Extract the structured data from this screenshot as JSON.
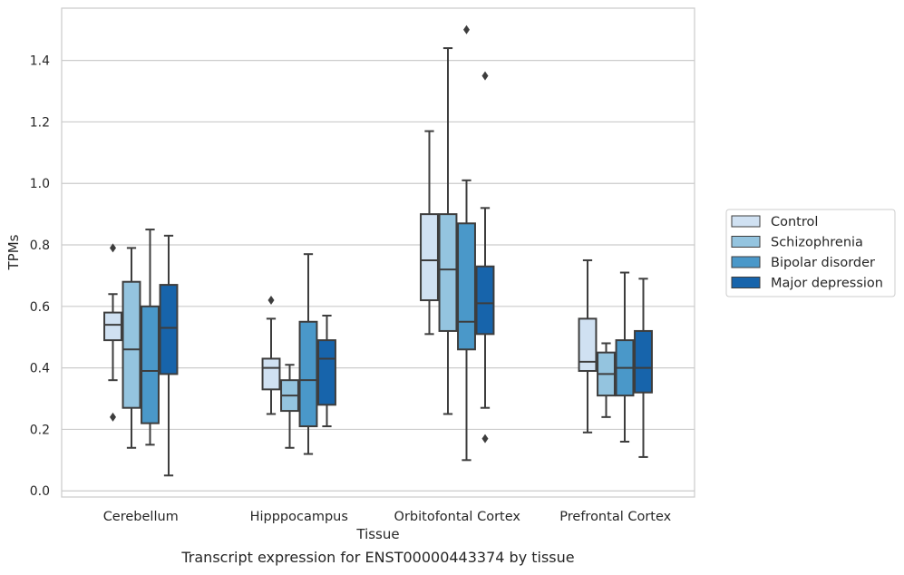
{
  "chart_data": {
    "type": "box",
    "title": "",
    "xlabel": "Tissue",
    "ylabel": "TPMs",
    "caption": "Transcript expression for ENST00000443374 by tissue",
    "ylim": [
      -0.02,
      1.57
    ],
    "yticks": [
      0.0,
      0.2,
      0.4,
      0.6,
      0.8,
      1.0,
      1.2,
      1.4
    ],
    "ytick_labels": [
      "0.0",
      "0.2",
      "0.4",
      "0.6",
      "0.8",
      "1.0",
      "1.2",
      "1.4"
    ],
    "grid": true,
    "legend_position": "right",
    "categories": [
      "Cerebellum",
      "Hipppocampus",
      "Orbitofontal Cortex",
      "Prefrontal Cortex"
    ],
    "series": [
      {
        "name": "Control",
        "color": "#d0e1f2",
        "boxes": [
          {
            "whislo": 0.36,
            "q1": 0.49,
            "med": 0.54,
            "q3": 0.58,
            "whishi": 0.64,
            "fliers": [
              0.79,
              0.24
            ]
          },
          {
            "whislo": 0.25,
            "q1": 0.33,
            "med": 0.4,
            "q3": 0.43,
            "whishi": 0.56,
            "fliers": [
              0.62
            ]
          },
          {
            "whislo": 0.51,
            "q1": 0.62,
            "med": 0.75,
            "q3": 0.9,
            "whishi": 1.17,
            "fliers": []
          },
          {
            "whislo": 0.19,
            "q1": 0.39,
            "med": 0.42,
            "q3": 0.56,
            "whishi": 0.75,
            "fliers": []
          }
        ]
      },
      {
        "name": "Schizophrenia",
        "color": "#94c4df",
        "boxes": [
          {
            "whislo": 0.14,
            "q1": 0.27,
            "med": 0.46,
            "q3": 0.68,
            "whishi": 0.79,
            "fliers": []
          },
          {
            "whislo": 0.14,
            "q1": 0.26,
            "med": 0.31,
            "q3": 0.36,
            "whishi": 0.41,
            "fliers": []
          },
          {
            "whislo": 0.25,
            "q1": 0.52,
            "med": 0.72,
            "q3": 0.9,
            "whishi": 1.44,
            "fliers": []
          },
          {
            "whislo": 0.24,
            "q1": 0.31,
            "med": 0.38,
            "q3": 0.45,
            "whishi": 0.48,
            "fliers": []
          }
        ]
      },
      {
        "name": "Bipolar disorder",
        "color": "#4a98c9",
        "boxes": [
          {
            "whislo": 0.15,
            "q1": 0.22,
            "med": 0.39,
            "q3": 0.6,
            "whishi": 0.85,
            "fliers": []
          },
          {
            "whislo": 0.12,
            "q1": 0.21,
            "med": 0.36,
            "q3": 0.55,
            "whishi": 0.77,
            "fliers": []
          },
          {
            "whislo": 0.1,
            "q1": 0.46,
            "med": 0.55,
            "q3": 0.87,
            "whishi": 1.01,
            "fliers": [
              1.5
            ]
          },
          {
            "whislo": 0.16,
            "q1": 0.31,
            "med": 0.4,
            "q3": 0.49,
            "whishi": 0.71,
            "fliers": []
          }
        ]
      },
      {
        "name": "Major depression",
        "color": "#1764ab",
        "boxes": [
          {
            "whislo": 0.05,
            "q1": 0.38,
            "med": 0.53,
            "q3": 0.67,
            "whishi": 0.83,
            "fliers": []
          },
          {
            "whislo": 0.21,
            "q1": 0.28,
            "med": 0.43,
            "q3": 0.49,
            "whishi": 0.57,
            "fliers": []
          },
          {
            "whislo": 0.27,
            "q1": 0.51,
            "med": 0.61,
            "q3": 0.73,
            "whishi": 0.92,
            "fliers": [
              1.35,
              0.17
            ]
          },
          {
            "whislo": 0.11,
            "q1": 0.32,
            "med": 0.4,
            "q3": 0.52,
            "whishi": 0.69,
            "fliers": []
          }
        ]
      }
    ]
  }
}
